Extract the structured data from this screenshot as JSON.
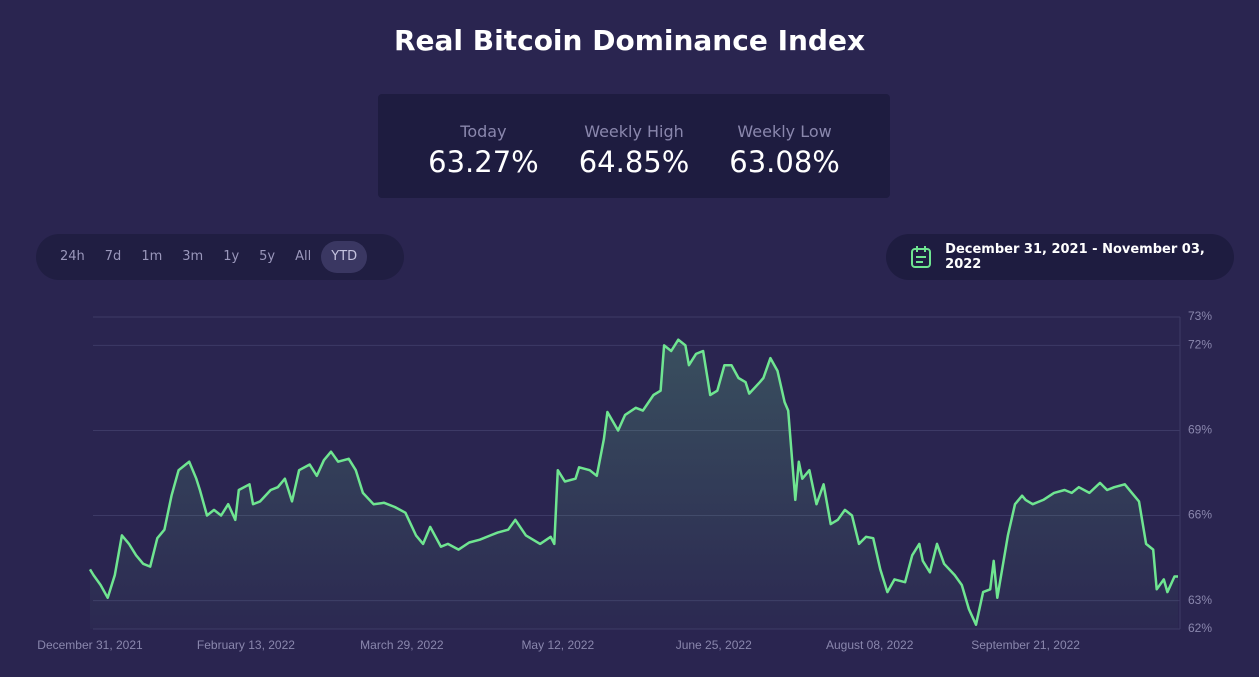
{
  "title": "Real Bitcoin Dominance Index",
  "stats": [
    {
      "label": "Today",
      "value": "63.27%"
    },
    {
      "label": "Weekly High",
      "value": "64.85%"
    },
    {
      "label": "Weekly Low",
      "value": "63.08%"
    }
  ],
  "ranges": [
    "24h",
    "7d",
    "1m",
    "3m",
    "1y",
    "5y",
    "All",
    "YTD"
  ],
  "active_range": 7,
  "date_range": "December 31, 2021 - November 03, 2022",
  "chart_data": {
    "type": "area",
    "color": "#6fe591",
    "grid": true,
    "x": [
      "2021-12-31",
      "2022-01-01",
      "2022-01-03",
      "2022-01-05",
      "2022-01-07",
      "2022-01-09",
      "2022-01-11",
      "2022-01-13",
      "2022-01-15",
      "2022-01-17",
      "2022-01-19",
      "2022-01-21",
      "2022-01-23",
      "2022-01-25",
      "2022-01-27",
      "2022-01-28",
      "2022-01-30",
      "2022-01-31",
      "2022-02-02",
      "2022-02-04",
      "2022-02-06",
      "2022-02-08",
      "2022-02-10",
      "2022-02-11",
      "2022-02-14",
      "2022-02-15",
      "2022-02-17",
      "2022-02-20",
      "2022-02-22",
      "2022-02-24",
      "2022-02-26",
      "2022-02-28",
      "2022-03-03",
      "2022-03-05",
      "2022-03-07",
      "2022-03-09",
      "2022-03-11",
      "2022-03-14",
      "2022-03-16",
      "2022-03-18",
      "2022-03-21",
      "2022-03-24",
      "2022-03-27",
      "2022-03-30",
      "2022-04-02",
      "2022-04-04",
      "2022-04-06",
      "2022-04-09",
      "2022-04-11",
      "2022-04-14",
      "2022-04-17",
      "2022-04-20",
      "2022-04-23",
      "2022-04-25",
      "2022-04-28",
      "2022-04-30",
      "2022-05-03",
      "2022-05-07",
      "2022-05-10",
      "2022-05-11",
      "2022-05-12",
      "2022-05-14",
      "2022-05-17",
      "2022-05-18",
      "2022-05-21",
      "2022-05-23",
      "2022-05-25",
      "2022-05-26",
      "2022-05-29",
      "2022-05-31",
      "2022-06-03",
      "2022-06-05",
      "2022-06-08",
      "2022-06-10",
      "2022-06-11",
      "2022-06-13",
      "2022-06-15",
      "2022-06-17",
      "2022-06-18",
      "2022-06-20",
      "2022-06-22",
      "2022-06-24",
      "2022-06-26",
      "2022-06-28",
      "2022-06-30",
      "2022-07-02",
      "2022-07-04",
      "2022-07-05",
      "2022-07-08",
      "2022-07-09",
      "2022-07-11",
      "2022-07-13",
      "2022-07-15",
      "2022-07-16",
      "2022-07-18",
      "2022-07-19",
      "2022-07-20",
      "2022-07-22",
      "2022-07-24",
      "2022-07-26",
      "2022-07-28",
      "2022-07-30",
      "2022-08-01",
      "2022-08-03",
      "2022-08-05",
      "2022-08-07",
      "2022-08-09",
      "2022-08-11",
      "2022-08-13",
      "2022-08-15",
      "2022-08-18",
      "2022-08-20",
      "2022-08-22",
      "2022-08-23",
      "2022-08-25",
      "2022-08-27",
      "2022-08-29",
      "2022-09-01",
      "2022-09-03",
      "2022-09-05",
      "2022-09-07",
      "2022-09-09",
      "2022-09-11",
      "2022-09-12",
      "2022-09-13",
      "2022-09-16",
      "2022-09-18",
      "2022-09-20",
      "2022-09-21",
      "2022-09-23",
      "2022-09-26",
      "2022-09-29",
      "2022-10-02",
      "2022-10-04",
      "2022-10-06",
      "2022-10-09",
      "2022-10-12",
      "2022-10-14",
      "2022-10-16",
      "2022-10-19",
      "2022-10-21",
      "2022-10-23",
      "2022-10-25",
      "2022-10-27",
      "2022-10-28",
      "2022-10-30",
      "2022-10-31",
      "2022-11-02",
      "2022-11-03"
    ],
    "values": [
      64.1,
      63.9,
      63.55,
      63.1,
      63.9,
      65.3,
      65.0,
      64.6,
      64.3,
      64.2,
      65.2,
      65.5,
      66.7,
      67.6,
      67.8,
      67.9,
      67.3,
      66.9,
      66.0,
      66.2,
      66.0,
      66.4,
      65.85,
      66.9,
      67.1,
      66.4,
      66.5,
      66.9,
      67.0,
      67.3,
      66.5,
      67.6,
      67.8,
      67.4,
      67.95,
      68.25,
      67.9,
      68.0,
      67.6,
      66.8,
      66.4,
      66.45,
      66.3,
      66.1,
      65.3,
      65.0,
      65.6,
      64.9,
      65.0,
      64.8,
      65.05,
      65.15,
      65.3,
      65.4,
      65.5,
      65.85,
      65.3,
      65.0,
      65.25,
      65.0,
      67.6,
      67.2,
      67.3,
      67.7,
      67.6,
      67.4,
      68.7,
      69.65,
      69.0,
      69.55,
      69.8,
      69.7,
      70.25,
      70.4,
      72.0,
      71.8,
      72.2,
      72.0,
      71.3,
      71.7,
      71.8,
      70.25,
      70.4,
      71.3,
      71.3,
      70.85,
      70.7,
      70.3,
      70.7,
      70.85,
      71.55,
      71.1,
      70.0,
      69.7,
      66.55,
      67.9,
      67.3,
      67.6,
      66.4,
      67.1,
      65.7,
      65.85,
      66.2,
      66.0,
      65.0,
      65.25,
      65.2,
      64.1,
      63.3,
      63.75,
      63.65,
      64.6,
      65.0,
      64.4,
      64.0,
      65.0,
      64.3,
      63.9,
      63.55,
      62.7,
      62.15,
      63.3,
      63.4,
      64.4,
      63.1,
      65.3,
      66.4,
      66.7,
      66.55,
      66.4,
      66.55,
      66.8,
      66.9,
      66.8,
      67.0,
      66.8,
      67.15,
      66.9,
      67.0,
      67.1,
      66.8,
      66.5,
      65.0,
      64.8,
      63.4,
      63.75,
      63.3,
      63.85,
      63.85
    ],
    "xlim": [
      "2021-12-31",
      "2022-11-03"
    ],
    "xticks": [
      {
        "value": "2021-12-31",
        "label": "December 31, 2021"
      },
      {
        "value": "2022-02-13",
        "label": "February 13, 2022"
      },
      {
        "value": "2022-03-29",
        "label": "March 29, 2022"
      },
      {
        "value": "2022-05-12",
        "label": "May 12, 2022"
      },
      {
        "value": "2022-06-25",
        "label": "June 25, 2022"
      },
      {
        "value": "2022-08-08",
        "label": "August 08, 2022"
      },
      {
        "value": "2022-09-21",
        "label": "September 21, 2022"
      }
    ],
    "ylim": [
      62,
      73
    ],
    "yticks": [
      {
        "value": 62,
        "label": "62%"
      },
      {
        "value": 63,
        "label": "63%"
      },
      {
        "value": 66,
        "label": "66%"
      },
      {
        "value": 69,
        "label": "69%"
      },
      {
        "value": 72,
        "label": "72%"
      },
      {
        "value": 73,
        "label": "73%"
      }
    ]
  }
}
